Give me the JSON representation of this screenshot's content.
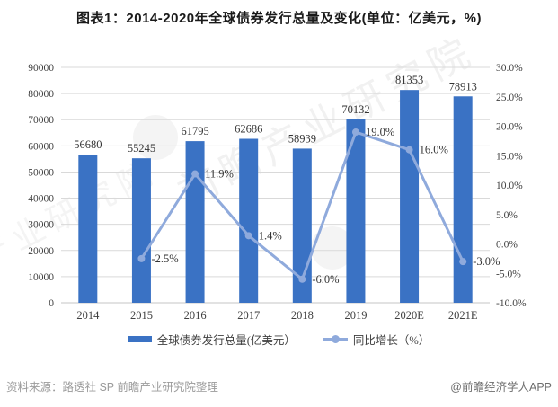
{
  "title": "图表1：2014-2020年全球债券发行总量及变化(单位：亿美元，%)",
  "chart_data": {
    "type": "bar",
    "categories": [
      "2014",
      "2015",
      "2016",
      "2017",
      "2018",
      "2019",
      "2020E",
      "2021E"
    ],
    "series": [
      {
        "name": "全球债券发行总量(亿美元）",
        "type": "bar",
        "axis": "left",
        "values": [
          56680,
          55245,
          61795,
          62686,
          58939,
          70132,
          81353,
          78913
        ],
        "labels": [
          "56680",
          "55245",
          "61795",
          "62686",
          "58939",
          "70132",
          "81353",
          "78913"
        ],
        "color": "#3A72C4"
      },
      {
        "name": "同比增长（%）",
        "type": "line",
        "axis": "right",
        "values": [
          null,
          -2.5,
          11.9,
          1.4,
          -6.0,
          19.0,
          16.0,
          -3.0
        ],
        "labels": [
          "",
          "-2.5%",
          "11.9%",
          "1.4%",
          "-6.0%",
          "19.0%",
          "16.0%",
          "-3.0%"
        ],
        "color": "#8FAADC"
      }
    ],
    "left_axis": {
      "min": 0,
      "max": 90000,
      "step": 10000,
      "tick_values": [
        0,
        10000,
        20000,
        30000,
        40000,
        50000,
        60000,
        70000,
        80000,
        90000
      ],
      "tick_labels": [
        "0",
        "10000",
        "20000",
        "30000",
        "40000",
        "50000",
        "60000",
        "70000",
        "80000",
        "90000"
      ]
    },
    "right_axis": {
      "min": -10,
      "max": 30,
      "step": 5,
      "tick_values": [
        -10,
        -5,
        0,
        5,
        10,
        15,
        20,
        25,
        30
      ],
      "tick_labels": [
        "-10.0%",
        "-5.0%",
        "0.0%",
        "5.0%",
        "10.0%",
        "15.0%",
        "20.0%",
        "25.0%",
        "30.0%"
      ]
    },
    "grid": true,
    "legend_position": "bottom"
  },
  "legend": {
    "items": [
      {
        "label": "全球债券发行总量(亿美元）",
        "swatch": "bar"
      },
      {
        "label": "同比增长（%）",
        "swatch": "line"
      }
    ]
  },
  "footer": {
    "source": "资料来源：路透社 SP 前瞻产业研究院整理",
    "credit": "@前瞻经济学人APP"
  },
  "watermark": {
    "text": "前瞻产业研究院"
  },
  "colors": {
    "bar": "#3A72C4",
    "line": "#8FAADC",
    "grid": "#D9D9D9",
    "axis_line": "#C6C6C6",
    "axis_text": "#404040",
    "title_text": "#1a1a1a"
  }
}
